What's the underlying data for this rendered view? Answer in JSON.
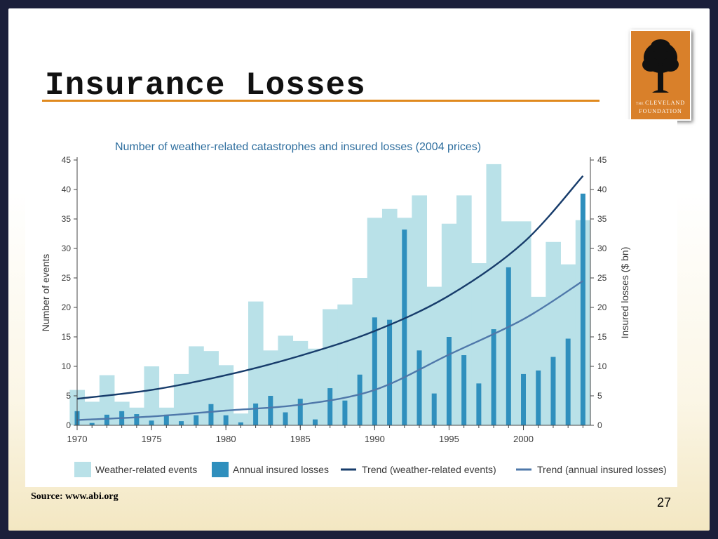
{
  "slide": {
    "title": "Insurance Losses",
    "source": "Source: www.abi.org",
    "page_number": "27",
    "accent_color": "#e08a1e",
    "logo": {
      "name": "the-cleveland-foundation-logo",
      "line1_small": "THE",
      "line1": "CLEVELAND",
      "line2": "FOUNDATION",
      "color": "#d9802a"
    }
  },
  "chart_data": {
    "type": "bar",
    "title": "Number of weather-related catastrophes and insured losses (2004 prices)",
    "ylabel": "Number of events",
    "y2label": "Insured losses ($ bn)",
    "ylim": [
      0,
      45
    ],
    "y2lim": [
      0,
      45
    ],
    "yticks": [
      0,
      5,
      10,
      15,
      20,
      25,
      30,
      35,
      40,
      45
    ],
    "xlim": [
      1970,
      2004
    ],
    "xticks": [
      1970,
      1975,
      1980,
      1985,
      1990,
      1995,
      2000
    ],
    "years": [
      1970,
      1971,
      1972,
      1973,
      1974,
      1975,
      1976,
      1977,
      1978,
      1979,
      1980,
      1981,
      1982,
      1983,
      1984,
      1985,
      1986,
      1987,
      1988,
      1989,
      1990,
      1991,
      1992,
      1993,
      1994,
      1995,
      1996,
      1997,
      1998,
      1999,
      2000,
      2001,
      2002,
      2003,
      2004
    ],
    "series": [
      {
        "name": "Weather-related events",
        "kind": "bar-wide",
        "color": "#b9e1e8",
        "values": [
          6,
          4,
          8.5,
          4,
          3,
          10,
          3,
          8.7,
          13.4,
          12.6,
          10.2,
          2,
          21,
          12.7,
          15.2,
          14.3,
          13,
          19.7,
          20.5,
          25,
          35.2,
          36.7,
          35.2,
          39,
          23.5,
          34.2,
          39,
          27.5,
          44.3,
          34.6,
          34.6,
          21.8,
          31.1,
          27.3,
          34.8
        ]
      },
      {
        "name": "Annual insured losses",
        "kind": "bar-narrow",
        "color": "#2f8fbd",
        "values": [
          2.4,
          0.4,
          1.8,
          2.4,
          1.9,
          0.8,
          1.8,
          0.7,
          1.7,
          3.6,
          1.7,
          0.5,
          3.7,
          5,
          2.2,
          4.5,
          1,
          6.3,
          4.2,
          8.6,
          18.3,
          17.9,
          33.2,
          12.7,
          5.4,
          15,
          11.9,
          7.1,
          16.3,
          26.8,
          8.7,
          9.3,
          11.6,
          14.7,
          39.3
        ]
      },
      {
        "name": "Trend (weather-related events)",
        "kind": "line",
        "color": "#173c6b",
        "x": [
          1970,
          1975,
          1980,
          1985,
          1990,
          1995,
          2000,
          2004
        ],
        "values": [
          4.5,
          6,
          8.5,
          11.8,
          16,
          22,
          31,
          42.3
        ]
      },
      {
        "name": "Trend (annual insured losses)",
        "kind": "line",
        "color": "#4f78aa",
        "x": [
          1970,
          1975,
          1980,
          1985,
          1990,
          1995,
          2000,
          2004
        ],
        "values": [
          0.9,
          1.5,
          2.5,
          3.5,
          6,
          12,
          18,
          24.5
        ]
      }
    ],
    "legend_position": "bottom",
    "grid": false,
    "title_color": "#2e6e9e",
    "axis_text_color": "#3a3a3a"
  }
}
